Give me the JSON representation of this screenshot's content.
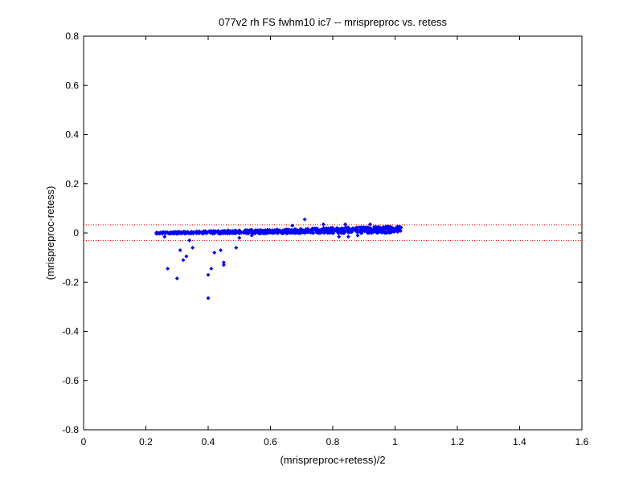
{
  "chart_data": {
    "type": "scatter",
    "title": "077v2 rh FS fwhm10 ic7 -- mrispreproc vs. retess",
    "xlabel": "(mrispreproc+retess)/2",
    "ylabel": "(mrispreproc-retess)",
    "xlim": [
      0,
      1.6
    ],
    "ylim": [
      -0.8,
      0.8
    ],
    "xticks": [
      "0",
      "0.2",
      "0.4",
      "0.6",
      "0.8",
      "1",
      "1.2",
      "1.4",
      "1.6"
    ],
    "yticks": [
      "-0.8",
      "-0.6",
      "-0.4",
      "-0.2",
      "0",
      "0.2",
      "0.4",
      "0.6",
      "0.8"
    ],
    "grid": false,
    "marker_color": "#0000ff",
    "reference_line_color": "#ff0000",
    "reference_lines_y": [
      0.033,
      -0.031
    ],
    "outliers": [
      {
        "x": 0.27,
        "y": -0.145
      },
      {
        "x": 0.3,
        "y": -0.185
      },
      {
        "x": 0.31,
        "y": -0.07
      },
      {
        "x": 0.32,
        "y": -0.11
      },
      {
        "x": 0.33,
        "y": -0.095
      },
      {
        "x": 0.34,
        "y": -0.03
      },
      {
        "x": 0.35,
        "y": -0.06
      },
      {
        "x": 0.4,
        "y": -0.265
      },
      {
        "x": 0.4,
        "y": -0.17
      },
      {
        "x": 0.41,
        "y": -0.145
      },
      {
        "x": 0.42,
        "y": -0.08
      },
      {
        "x": 0.44,
        "y": -0.07
      },
      {
        "x": 0.45,
        "y": -0.12
      },
      {
        "x": 0.45,
        "y": -0.13
      },
      {
        "x": 0.49,
        "y": -0.06
      },
      {
        "x": 0.71,
        "y": 0.055
      },
      {
        "x": 0.67,
        "y": 0.03
      },
      {
        "x": 0.77,
        "y": 0.035
      },
      {
        "x": 0.84,
        "y": 0.035
      },
      {
        "x": 0.92,
        "y": 0.035
      },
      {
        "x": 0.85,
        "y": -0.015
      },
      {
        "x": 0.88,
        "y": -0.01
      },
      {
        "x": 0.82,
        "y": -0.015
      },
      {
        "x": 0.26,
        "y": -0.015
      },
      {
        "x": 0.5,
        "y": -0.02
      },
      {
        "x": 0.54,
        "y": -0.01
      }
    ]
  }
}
